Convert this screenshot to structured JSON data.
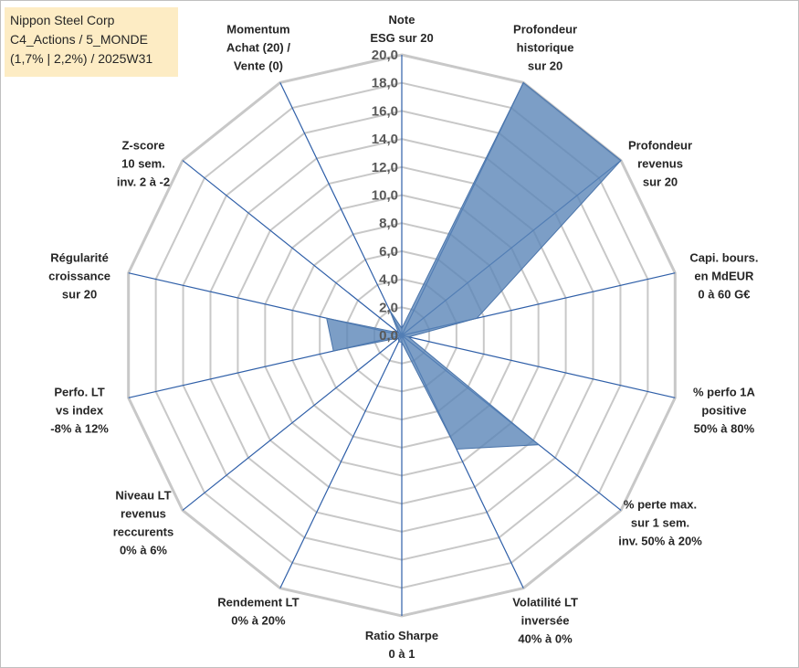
{
  "title_lines": [
    "Nippon Steel Corp",
    "C4_Actions / 5_MONDE",
    "(1,7% | 2,2%) / 2025W31"
  ],
  "colors": {
    "grid": "#c8c8c8",
    "spoke": "#2f5fa8",
    "fill": "#5b86b8",
    "fill_stroke": "#4a74aa",
    "title_bg": "#fdecc4"
  },
  "chart_data": {
    "type": "radar",
    "title": "",
    "rlim": [
      0,
      20
    ],
    "grid": true,
    "tick_labels": [
      "0,0",
      "2,0",
      "4,0",
      "6,0",
      "8,0",
      "10,0",
      "12,0",
      "14,0",
      "16,0",
      "18,0",
      "20,0"
    ],
    "categories": [
      [
        "Note",
        "ESG sur 20"
      ],
      [
        "Profondeur",
        "historique",
        "sur 20"
      ],
      [
        "Profondeur",
        "revenus",
        "sur 20"
      ],
      [
        "Capi. bours.",
        "en MdEUR",
        "0 à 60 G€"
      ],
      [
        "% perfo 1A",
        "positive",
        "50% à 80%"
      ],
      [
        "% perte max.",
        "sur 1 sem.",
        "inv. 50% à 20%"
      ],
      [
        "Volatilité LT",
        "inversée",
        "40% à 0%"
      ],
      [
        "Ratio Sharpe",
        "0 à 1"
      ],
      [
        "Rendement LT",
        "0% à 20%"
      ],
      [
        "Niveau LT",
        "revenus",
        "reccurents",
        "0% à 6%"
      ],
      [
        "Perfo. LT",
        "vs index",
        "-8% à 12%"
      ],
      [
        "Régularité",
        "croissance",
        "sur 20"
      ],
      [
        "Z-score",
        "10 sem.",
        "inv. 2 à -2"
      ],
      [
        "Momentum",
        "Achat (20) /",
        "Vente (0)"
      ]
    ],
    "series": [
      {
        "values": [
          0.5,
          20,
          20,
          5.5,
          0.5,
          12.5,
          9.0,
          0.5,
          0.5,
          0.3,
          5.0,
          5.5,
          0.3,
          2.0
        ]
      }
    ]
  }
}
